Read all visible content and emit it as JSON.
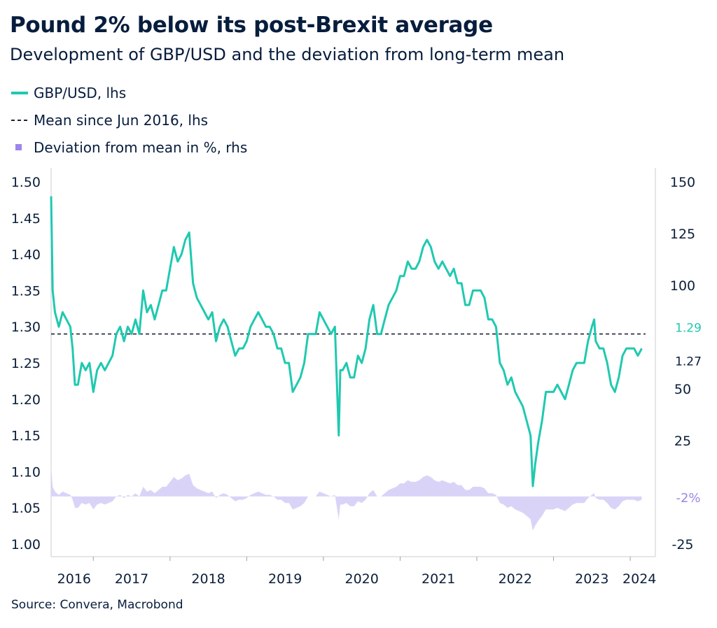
{
  "chart_data": {
    "type": "line",
    "title": "Pound 2% below its post-Brexit average",
    "subtitle": "Development of GBP/USD and the deviation from long-term mean",
    "source": "Source: Convera, Macrobond",
    "colors": {
      "gbpusd": "#1fc9b0",
      "mean": "#1b2436",
      "deviation": "#d9d4f7",
      "deviation_label": "#9d86ec",
      "text": "#071d3d"
    },
    "legend": [
      {
        "label": "GBP/USD, lhs",
        "swatch": "line"
      },
      {
        "label": "Mean since Jun 2016, lhs",
        "swatch": "dash"
      },
      {
        "label": "Deviation from mean in %, rhs",
        "swatch": "square"
      }
    ],
    "left_axis": {
      "min": 1.0,
      "max": 1.5,
      "ticks": [
        "1.00",
        "1.05",
        "1.10",
        "1.15",
        "1.20",
        "1.25",
        "1.30",
        "1.35",
        "1.40",
        "1.45",
        "1.50"
      ]
    },
    "right_axis": {
      "min": -25,
      "max": 150,
      "ticks": [
        {
          "label": "150",
          "value": 150
        },
        {
          "label": "125",
          "value": 125
        },
        {
          "label": "100",
          "value": 100
        },
        {
          "label": "50",
          "value": 50
        },
        {
          "label": "25",
          "value": 25
        },
        {
          "label": "-25",
          "value": -25
        }
      ]
    },
    "x_axis": {
      "min": 2016.45,
      "max": 2024.2,
      "labels": [
        {
          "label": "2016",
          "pos": 2016.75
        },
        {
          "label": "2017",
          "pos": 2017.5
        },
        {
          "label": "2018",
          "pos": 2018.5
        },
        {
          "label": "2019",
          "pos": 2019.5
        },
        {
          "label": "2020",
          "pos": 2020.5
        },
        {
          "label": "2021",
          "pos": 2021.5
        },
        {
          "label": "2022",
          "pos": 2022.5
        },
        {
          "label": "2023",
          "pos": 2023.5
        },
        {
          "label": "2024",
          "pos": 2024.12
        }
      ],
      "tick_marks": [
        2017,
        2018,
        2019,
        2020,
        2021,
        2022,
        2023,
        2024
      ]
    },
    "mean_value": 1.29,
    "annotations": [
      {
        "label": "1.29",
        "color": "#1fc9b0",
        "left_value": 1.29
      },
      {
        "label": "1.27",
        "color": "#071d3d",
        "left_value": 1.266
      },
      {
        "label": "-2%",
        "color": "#9d86ec",
        "right_value": -2
      }
    ],
    "series": [
      {
        "name": "GBP/USD, lhs",
        "points": [
          [
            2016.45,
            1.48
          ],
          [
            2016.47,
            1.35
          ],
          [
            2016.5,
            1.32
          ],
          [
            2016.55,
            1.3
          ],
          [
            2016.6,
            1.32
          ],
          [
            2016.65,
            1.31
          ],
          [
            2016.7,
            1.3
          ],
          [
            2016.73,
            1.27
          ],
          [
            2016.76,
            1.22
          ],
          [
            2016.8,
            1.22
          ],
          [
            2016.85,
            1.25
          ],
          [
            2016.9,
            1.24
          ],
          [
            2016.95,
            1.25
          ],
          [
            2017.0,
            1.21
          ],
          [
            2017.05,
            1.24
          ],
          [
            2017.1,
            1.25
          ],
          [
            2017.15,
            1.24
          ],
          [
            2017.2,
            1.25
          ],
          [
            2017.25,
            1.26
          ],
          [
            2017.3,
            1.29
          ],
          [
            2017.35,
            1.3
          ],
          [
            2017.4,
            1.28
          ],
          [
            2017.45,
            1.3
          ],
          [
            2017.5,
            1.29
          ],
          [
            2017.55,
            1.31
          ],
          [
            2017.6,
            1.29
          ],
          [
            2017.65,
            1.35
          ],
          [
            2017.7,
            1.32
          ],
          [
            2017.75,
            1.33
          ],
          [
            2017.8,
            1.31
          ],
          [
            2017.85,
            1.33
          ],
          [
            2017.9,
            1.35
          ],
          [
            2017.95,
            1.35
          ],
          [
            2018.0,
            1.38
          ],
          [
            2018.05,
            1.41
          ],
          [
            2018.1,
            1.39
          ],
          [
            2018.15,
            1.4
          ],
          [
            2018.2,
            1.42
          ],
          [
            2018.25,
            1.43
          ],
          [
            2018.3,
            1.36
          ],
          [
            2018.35,
            1.34
          ],
          [
            2018.4,
            1.33
          ],
          [
            2018.45,
            1.32
          ],
          [
            2018.5,
            1.31
          ],
          [
            2018.55,
            1.32
          ],
          [
            2018.6,
            1.28
          ],
          [
            2018.65,
            1.3
          ],
          [
            2018.7,
            1.31
          ],
          [
            2018.75,
            1.3
          ],
          [
            2018.8,
            1.28
          ],
          [
            2018.85,
            1.26
          ],
          [
            2018.9,
            1.27
          ],
          [
            2018.95,
            1.27
          ],
          [
            2019.0,
            1.28
          ],
          [
            2019.05,
            1.3
          ],
          [
            2019.1,
            1.31
          ],
          [
            2019.15,
            1.32
          ],
          [
            2019.2,
            1.31
          ],
          [
            2019.25,
            1.3
          ],
          [
            2019.3,
            1.3
          ],
          [
            2019.35,
            1.29
          ],
          [
            2019.4,
            1.27
          ],
          [
            2019.45,
            1.27
          ],
          [
            2019.5,
            1.25
          ],
          [
            2019.55,
            1.25
          ],
          [
            2019.6,
            1.21
          ],
          [
            2019.65,
            1.22
          ],
          [
            2019.7,
            1.23
          ],
          [
            2019.75,
            1.25
          ],
          [
            2019.8,
            1.29
          ],
          [
            2019.85,
            1.29
          ],
          [
            2019.9,
            1.29
          ],
          [
            2019.95,
            1.32
          ],
          [
            2020.0,
            1.31
          ],
          [
            2020.05,
            1.3
          ],
          [
            2020.1,
            1.29
          ],
          [
            2020.15,
            1.3
          ],
          [
            2020.2,
            1.15
          ],
          [
            2020.22,
            1.24
          ],
          [
            2020.25,
            1.24
          ],
          [
            2020.3,
            1.25
          ],
          [
            2020.35,
            1.23
          ],
          [
            2020.4,
            1.23
          ],
          [
            2020.45,
            1.26
          ],
          [
            2020.5,
            1.25
          ],
          [
            2020.55,
            1.27
          ],
          [
            2020.6,
            1.31
          ],
          [
            2020.65,
            1.33
          ],
          [
            2020.7,
            1.29
          ],
          [
            2020.75,
            1.29
          ],
          [
            2020.8,
            1.31
          ],
          [
            2020.85,
            1.33
          ],
          [
            2020.9,
            1.34
          ],
          [
            2020.95,
            1.35
          ],
          [
            2021.0,
            1.37
          ],
          [
            2021.05,
            1.37
          ],
          [
            2021.1,
            1.39
          ],
          [
            2021.15,
            1.38
          ],
          [
            2021.2,
            1.38
          ],
          [
            2021.25,
            1.39
          ],
          [
            2021.3,
            1.41
          ],
          [
            2021.35,
            1.42
          ],
          [
            2021.4,
            1.41
          ],
          [
            2021.45,
            1.39
          ],
          [
            2021.5,
            1.38
          ],
          [
            2021.55,
            1.39
          ],
          [
            2021.6,
            1.38
          ],
          [
            2021.65,
            1.37
          ],
          [
            2021.7,
            1.38
          ],
          [
            2021.75,
            1.36
          ],
          [
            2021.8,
            1.36
          ],
          [
            2021.85,
            1.33
          ],
          [
            2021.9,
            1.33
          ],
          [
            2021.95,
            1.35
          ],
          [
            2022.0,
            1.35
          ],
          [
            2022.05,
            1.35
          ],
          [
            2022.1,
            1.34
          ],
          [
            2022.15,
            1.31
          ],
          [
            2022.2,
            1.31
          ],
          [
            2022.25,
            1.3
          ],
          [
            2022.3,
            1.25
          ],
          [
            2022.35,
            1.24
          ],
          [
            2022.4,
            1.22
          ],
          [
            2022.45,
            1.23
          ],
          [
            2022.5,
            1.21
          ],
          [
            2022.55,
            1.2
          ],
          [
            2022.6,
            1.19
          ],
          [
            2022.65,
            1.17
          ],
          [
            2022.7,
            1.15
          ],
          [
            2022.73,
            1.08
          ],
          [
            2022.76,
            1.11
          ],
          [
            2022.8,
            1.14
          ],
          [
            2022.85,
            1.17
          ],
          [
            2022.9,
            1.21
          ],
          [
            2022.95,
            1.21
          ],
          [
            2023.0,
            1.21
          ],
          [
            2023.05,
            1.22
          ],
          [
            2023.1,
            1.21
          ],
          [
            2023.15,
            1.2
          ],
          [
            2023.2,
            1.22
          ],
          [
            2023.25,
            1.24
          ],
          [
            2023.3,
            1.25
          ],
          [
            2023.35,
            1.25
          ],
          [
            2023.4,
            1.25
          ],
          [
            2023.45,
            1.28
          ],
          [
            2023.5,
            1.3
          ],
          [
            2023.53,
            1.31
          ],
          [
            2023.55,
            1.28
          ],
          [
            2023.6,
            1.27
          ],
          [
            2023.65,
            1.27
          ],
          [
            2023.7,
            1.25
          ],
          [
            2023.75,
            1.22
          ],
          [
            2023.8,
            1.21
          ],
          [
            2023.85,
            1.23
          ],
          [
            2023.9,
            1.26
          ],
          [
            2023.95,
            1.27
          ],
          [
            2024.0,
            1.27
          ],
          [
            2024.05,
            1.27
          ],
          [
            2024.1,
            1.26
          ],
          [
            2024.15,
            1.27
          ]
        ]
      }
    ]
  }
}
